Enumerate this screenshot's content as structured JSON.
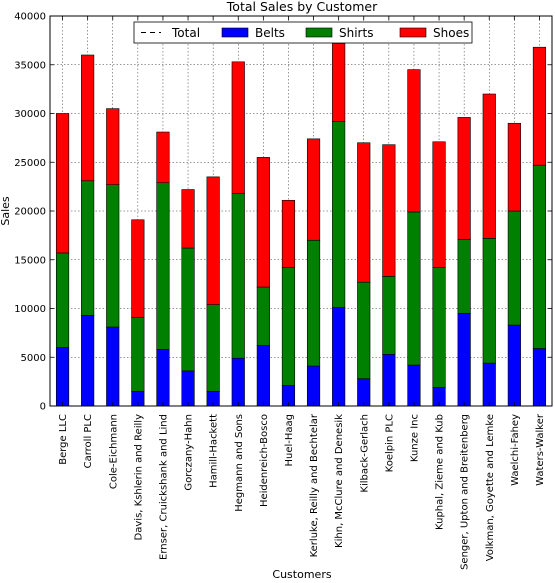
{
  "chart_data": {
    "type": "bar",
    "stacked": true,
    "title": "Total Sales by Customer",
    "xlabel": "Customers",
    "ylabel": "Sales",
    "ylim": [
      0,
      40000
    ],
    "yticks": [
      0,
      5000,
      10000,
      15000,
      20000,
      25000,
      30000,
      35000,
      40000
    ],
    "grid": true,
    "legend_position": "top-center",
    "categories": [
      "Berge LLC",
      "Carroll PLC",
      "Cole-Eichmann",
      "Davis, Kshlerin and Reilly",
      "Ernser, Cruickshank and Lind",
      "Gorczany-Hahn",
      "Hamill-Hackett",
      "Hegmann and Sons",
      "Heidenreich-Bosco",
      "Huel-Haag",
      "Kerluke, Reilly and Bechtelar",
      "Kihn, McClure and Denesik",
      "Kilback-Gerlach",
      "Koelpin PLC",
      "Kunze Inc",
      "Kuphal, Zieme and Kub",
      "Senger, Upton and Breitenberg",
      "Volkman, Goyette and Lemke",
      "Waelchi-Fahey",
      "Waters-Walker"
    ],
    "legend": [
      {
        "name": "Total",
        "color": "#000000",
        "style": "dashed-line"
      },
      {
        "name": "Belts",
        "color": "#0000ff",
        "style": "patch"
      },
      {
        "name": "Shirts",
        "color": "#008000",
        "style": "patch"
      },
      {
        "name": "Shoes",
        "color": "#ff0000",
        "style": "patch"
      }
    ],
    "series": [
      {
        "name": "Belts",
        "color": "#0000ff",
        "values": [
          6000,
          9300,
          8100,
          1500,
          5800,
          3600,
          1500,
          4900,
          6200,
          2100,
          4100,
          10100,
          2800,
          5300,
          4200,
          1900,
          9500,
          4400,
          8300,
          5900
        ]
      },
      {
        "name": "Shirts",
        "color": "#008000",
        "values": [
          9700,
          13800,
          14600,
          7600,
          17100,
          12600,
          8900,
          16900,
          6000,
          12100,
          12900,
          19100,
          9900,
          8000,
          15700,
          12300,
          7600,
          12800,
          11700,
          18800
        ]
      },
      {
        "name": "Shoes",
        "color": "#ff0000",
        "values": [
          14300,
          12900,
          7800,
          10000,
          5200,
          6000,
          13100,
          13500,
          13300,
          6900,
          10400,
          8000,
          14300,
          13500,
          14600,
          12900,
          12500,
          14800,
          9000,
          12100
        ]
      }
    ]
  }
}
